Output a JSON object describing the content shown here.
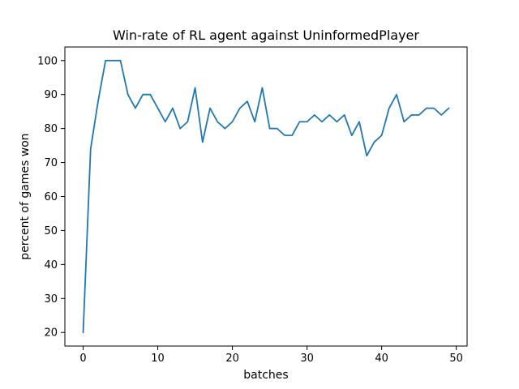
{
  "chart_data": {
    "type": "line",
    "title": "Win-rate of RL agent against UninformedPlayer",
    "xlabel": "batches",
    "ylabel": "percent of games won",
    "xlim": [
      -2.45,
      51.45
    ],
    "ylim": [
      16,
      104
    ],
    "xticks": [
      0,
      10,
      20,
      30,
      40,
      50
    ],
    "yticks": [
      20,
      30,
      40,
      50,
      60,
      70,
      80,
      90,
      100
    ],
    "grid": false,
    "series": [
      {
        "color": "#1f77b4",
        "x": [
          0,
          1,
          2,
          3,
          4,
          5,
          6,
          7,
          8,
          9,
          10,
          11,
          12,
          13,
          14,
          15,
          16,
          17,
          18,
          19,
          20,
          21,
          22,
          23,
          24,
          25,
          26,
          27,
          28,
          29,
          30,
          31,
          32,
          33,
          34,
          35,
          36,
          37,
          38,
          39,
          40,
          41,
          42,
          43,
          44,
          45,
          46,
          47,
          48,
          49
        ],
        "values": [
          20,
          74,
          88,
          100,
          100,
          100,
          90,
          86,
          90,
          90,
          86,
          82,
          86,
          80,
          82,
          92,
          76,
          86,
          82,
          80,
          82,
          86,
          88,
          82,
          92,
          80,
          80,
          78,
          78,
          82,
          82,
          84,
          82,
          84,
          82,
          84,
          78,
          82,
          72,
          76,
          78,
          86,
          90,
          82,
          84,
          84,
          86,
          86,
          84,
          86
        ]
      }
    ]
  }
}
